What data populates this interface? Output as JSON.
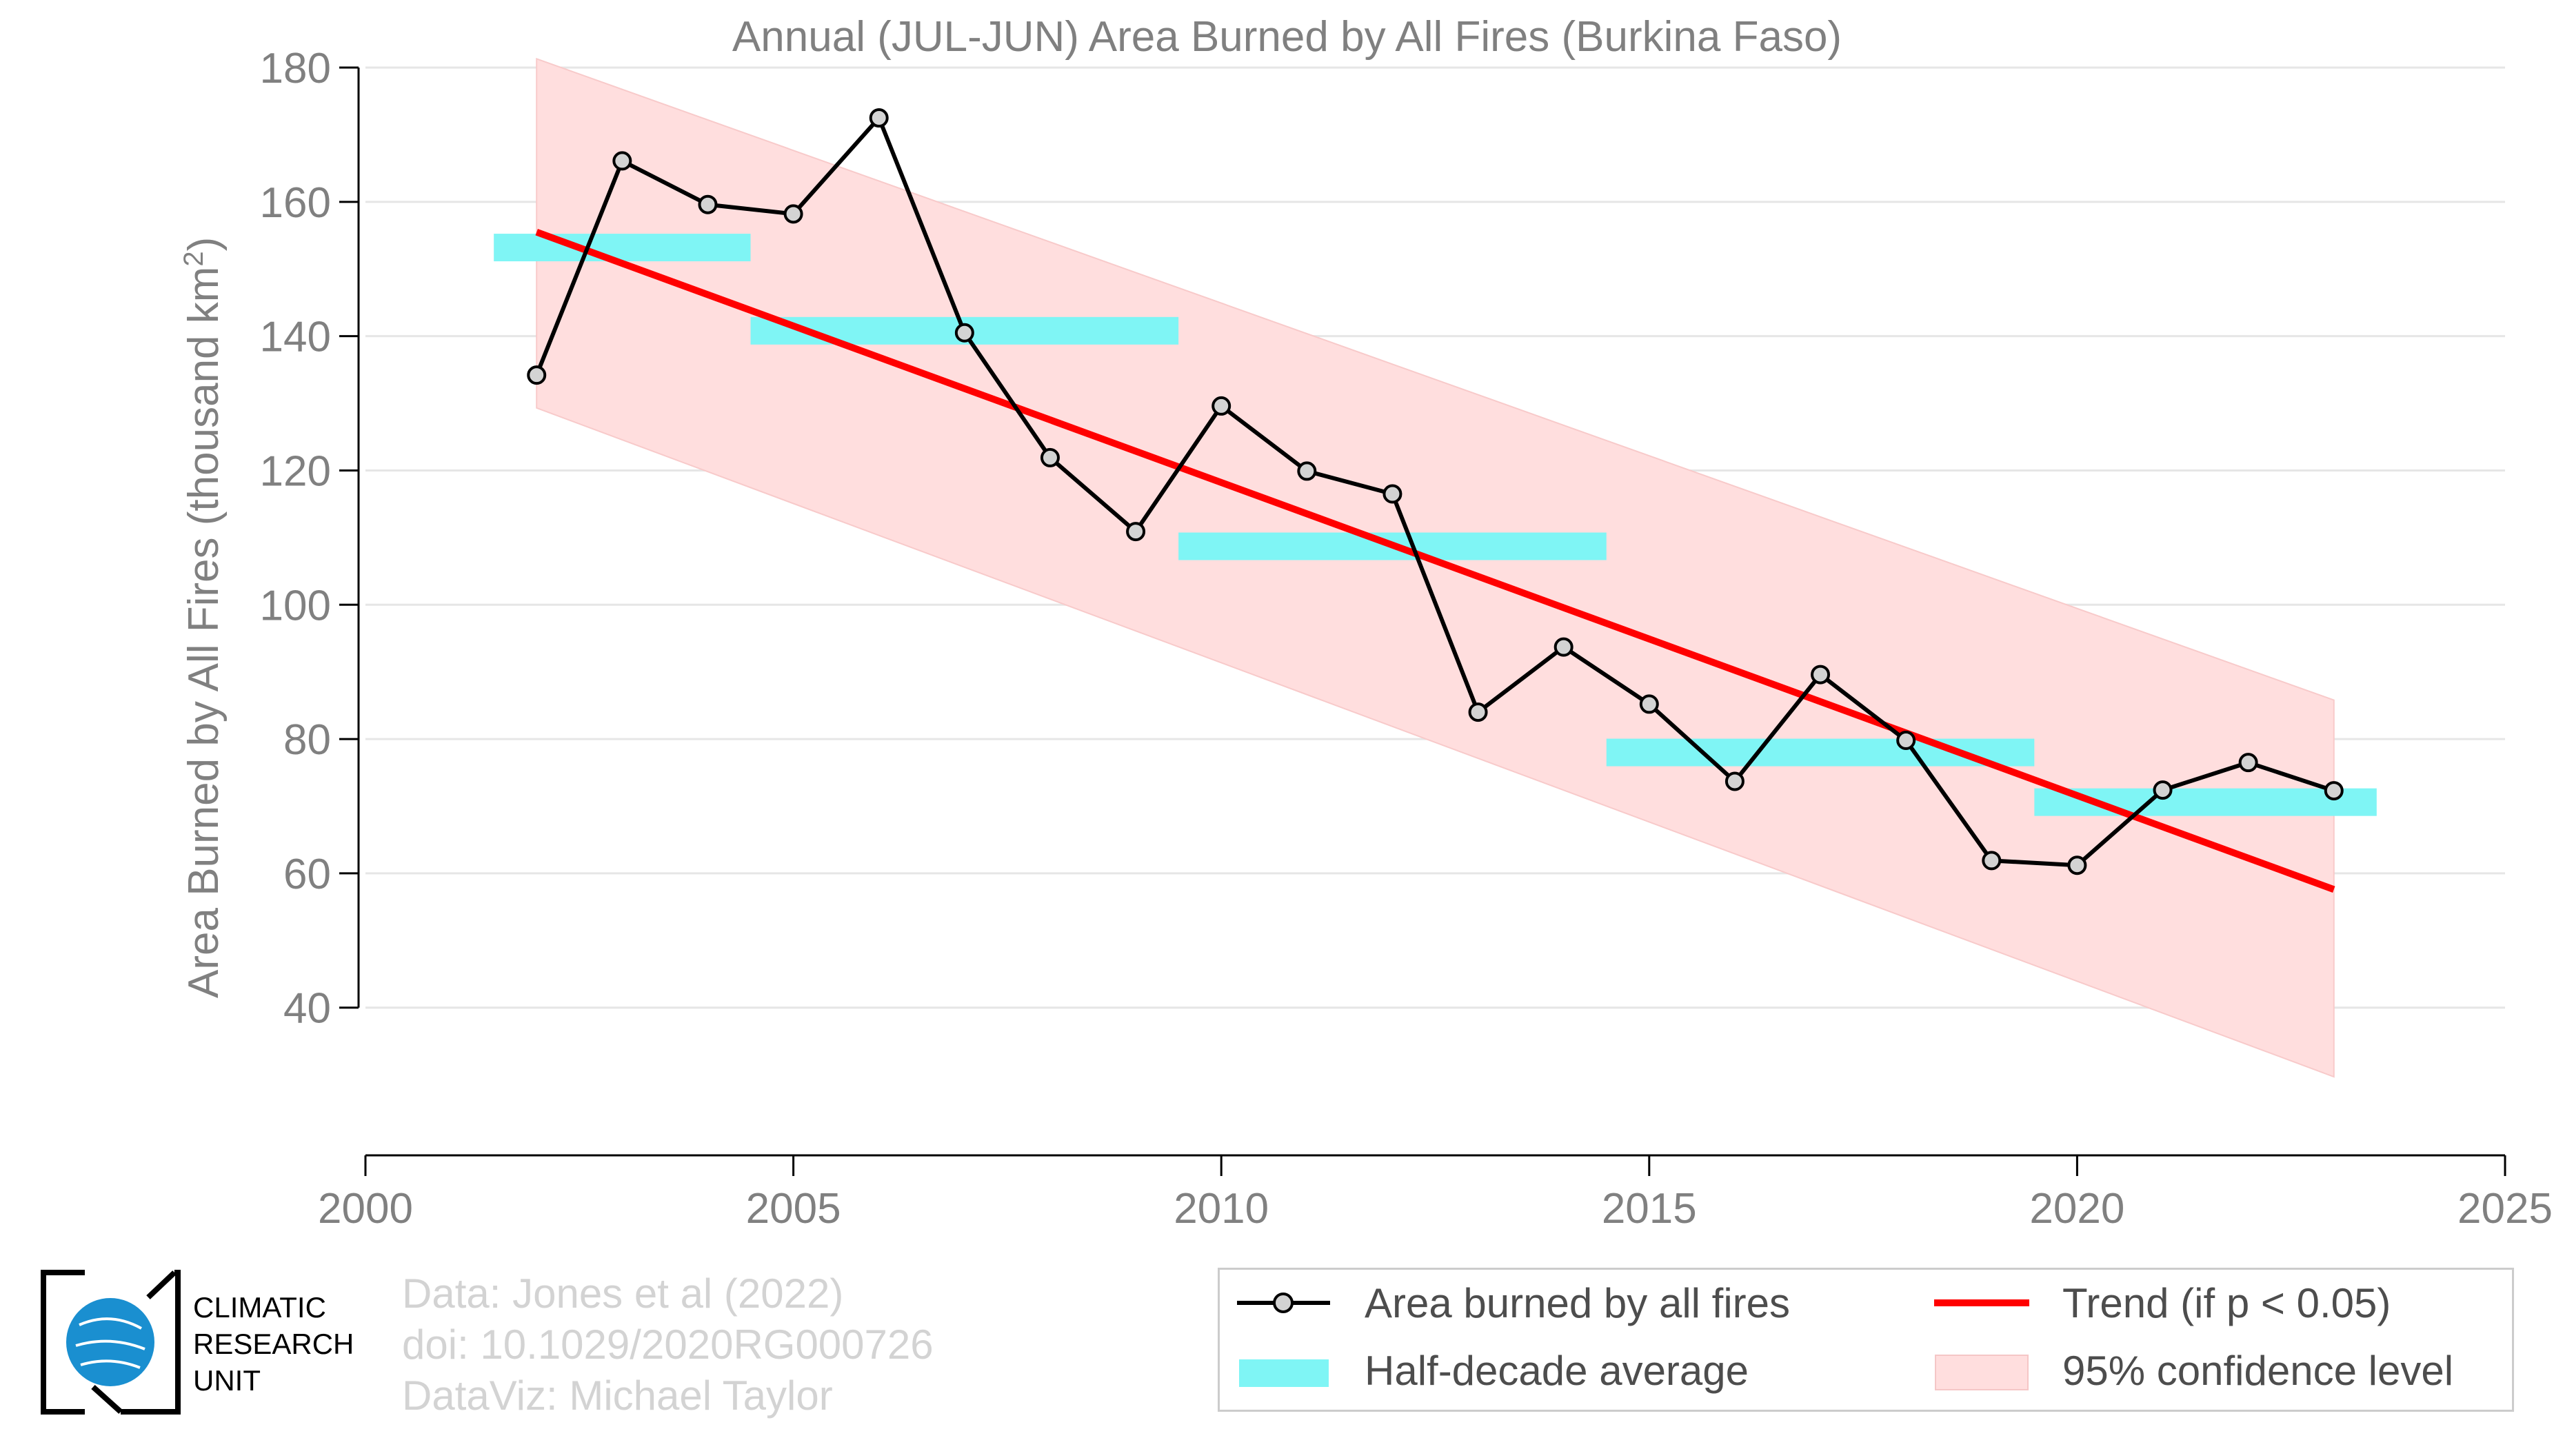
{
  "chart_data": {
    "type": "line",
    "title": "Annual (JUL-JUN) Area Burned by All Fires (Burkina Faso)",
    "ylabel": "Area Burned by All Fires (thousand km",
    "ylabel_superscript": "2",
    "ylabel_suffix": ")",
    "xlim": [
      2000,
      2025
    ],
    "ylim": [
      18,
      180
    ],
    "x_ticks": [
      "2000",
      "2005",
      "2010",
      "2015",
      "2020",
      "2025"
    ],
    "y_ticks": [
      "180",
      "160",
      "140",
      "120",
      "100",
      "80",
      "60",
      "40"
    ],
    "grid": "horizontal",
    "series": [
      {
        "name": "Area burned by all fires",
        "x": [
          2002,
          2003,
          2004,
          2005,
          2006,
          2007,
          2008,
          2009,
          2010,
          2011,
          2012,
          2013,
          2014,
          2015,
          2016,
          2017,
          2018,
          2019,
          2020,
          2021,
          2022,
          2023
        ],
        "values": [
          134.2,
          166.1,
          159.6,
          158.2,
          172.5,
          140.5,
          121.9,
          110.9,
          129.6,
          119.9,
          116.5,
          84.0,
          93.7,
          85.2,
          73.7,
          89.6,
          79.8,
          61.9,
          61.2,
          72.4,
          76.5,
          72.3
        ]
      }
    ],
    "half_decade_average": [
      {
        "x_start": 2001.5,
        "x_end": 2004.5,
        "value": 153.2
      },
      {
        "x_start": 2004.5,
        "x_end": 2009.5,
        "value": 140.8
      },
      {
        "x_start": 2009.5,
        "x_end": 2014.5,
        "value": 108.7
      },
      {
        "x_start": 2014.5,
        "x_end": 2019.5,
        "value": 78.0
      },
      {
        "x_start": 2019.5,
        "x_end": 2023.5,
        "value": 70.6
      }
    ],
    "trend": {
      "x": [
        2002,
        2023
      ],
      "values": [
        155.5,
        57.6
      ]
    },
    "confidence_band": {
      "x": [
        2002,
        2023
      ],
      "upper": [
        181.3,
        85.8
      ],
      "lower": [
        129.3,
        29.7
      ]
    },
    "legend": {
      "placement": "bottom-right",
      "entries": [
        "Area burned by all fires",
        "Trend (if p < 0.05)",
        "Half-decade average",
        "95% confidence level"
      ]
    },
    "colors": {
      "line": "#000000",
      "marker_fill": "#d3d3d3",
      "trend": "#ff0000",
      "half_decade": "#7ff5f5",
      "band": "#ffdede",
      "grid": "#e6e6e6",
      "text": "#808080"
    }
  },
  "credits": {
    "line1": "Data: Jones et al (2022)",
    "line2": "doi: 10.1029/2020RG000726",
    "line3": "DataViz: Michael Taylor"
  },
  "logo": {
    "line1": "CLIMATIC",
    "line2": "RESEARCH",
    "line3": "UNIT",
    "icon": "globe-icon"
  }
}
